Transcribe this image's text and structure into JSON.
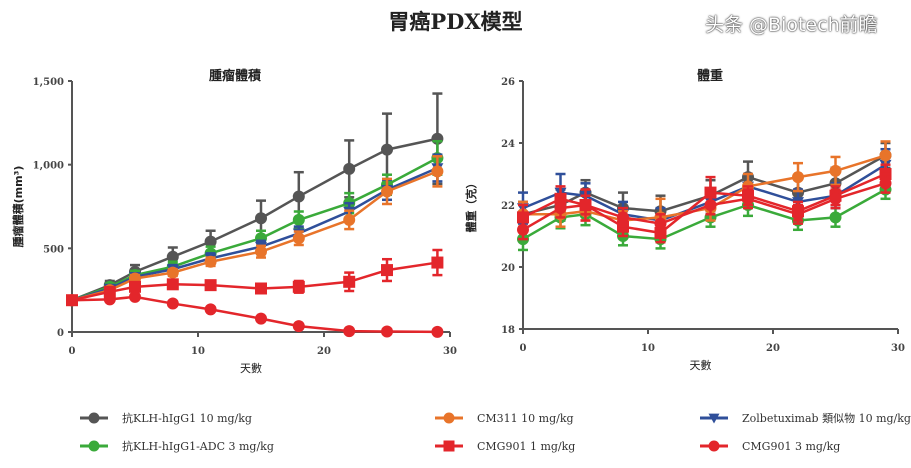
{
  "title": "胃癌PDX模型",
  "watermark": "头条 @Biotech前瞻",
  "chart_data": [
    {
      "type": "line",
      "title": "腫瘤體積",
      "xlabel": "天數",
      "ylabel": "腫瘤體積(mm³)",
      "xlim": [
        0,
        30
      ],
      "ylim": [
        0,
        1500
      ],
      "xticks": [
        0,
        10,
        20,
        30
      ],
      "yticks": [
        0,
        500,
        1000,
        1500
      ],
      "ytick_labels": [
        "0",
        "500",
        "1,000",
        "1,500"
      ],
      "x": [
        0,
        3,
        5,
        8,
        11,
        15,
        18,
        22,
        25,
        29
      ],
      "series": [
        {
          "name": "抗KLH-hIgG1 10 mg/kg",
          "color": "#555555",
          "marker": "circle",
          "values": [
            190,
            280,
            360,
            450,
            540,
            680,
            810,
            975,
            1090,
            1155
          ],
          "err": [
            15,
            25,
            40,
            55,
            65,
            105,
            145,
            170,
            215,
            270
          ]
        },
        {
          "name": "抗KLH-hIgG1-ADC 3 mg/kg",
          "color": "#3aaa3a",
          "marker": "circle",
          "values": [
            190,
            270,
            340,
            390,
            470,
            560,
            670,
            770,
            880,
            1040
          ],
          "err": [
            10,
            20,
            25,
            30,
            40,
            45,
            50,
            60,
            60,
            100
          ]
        },
        {
          "name": "Zolbetuximab 類似物 10 mg/kg",
          "color": "#2f4f9a",
          "marker": "triangle-down",
          "values": [
            190,
            260,
            330,
            375,
            440,
            510,
            590,
            720,
            850,
            980
          ],
          "err": [
            10,
            15,
            20,
            25,
            30,
            35,
            40,
            50,
            60,
            80
          ]
        },
        {
          "name": "CM311 10 mg/kg",
          "color": "#e8742a",
          "marker": "circle",
          "values": [
            190,
            250,
            320,
            355,
            420,
            480,
            560,
            670,
            840,
            960
          ],
          "err": [
            10,
            15,
            20,
            20,
            25,
            35,
            40,
            55,
            75,
            90
          ]
        },
        {
          "name": "CMG901 1 mg/kg",
          "color": "#e3262b",
          "marker": "square",
          "values": [
            190,
            240,
            270,
            285,
            280,
            260,
            270,
            300,
            370,
            415
          ],
          "err": [
            10,
            15,
            20,
            20,
            25,
            25,
            35,
            55,
            65,
            75
          ]
        },
        {
          "name": "CMG901 3 mg/kg",
          "color": "#e3262b",
          "marker": "circle",
          "values": [
            190,
            195,
            210,
            170,
            135,
            80,
            35,
            5,
            3,
            1
          ],
          "err": [
            10,
            10,
            12,
            12,
            12,
            10,
            8,
            3,
            2,
            1
          ]
        }
      ]
    },
    {
      "type": "line",
      "title": "體重",
      "xlabel": "天數",
      "ylabel": "體重（克）",
      "xlim": [
        0,
        30
      ],
      "ylim": [
        18,
        26
      ],
      "xticks": [
        0,
        10,
        20,
        30
      ],
      "yticks": [
        18,
        20,
        22,
        24,
        26
      ],
      "ytick_labels": [
        "18",
        "20",
        "22",
        "24",
        "26"
      ],
      "x": [
        0,
        3,
        5,
        8,
        11,
        15,
        18,
        22,
        25,
        29
      ],
      "series": [
        {
          "name": "抗KLH-hIgG1 10 mg/kg",
          "color": "#555555",
          "marker": "circle",
          "values": [
            21.7,
            22.0,
            22.4,
            21.9,
            21.8,
            22.3,
            22.9,
            22.4,
            22.7,
            23.6
          ],
          "err": [
            0.4,
            0.5,
            0.4,
            0.5,
            0.5,
            0.5,
            0.5,
            0.5,
            0.5,
            0.4
          ]
        },
        {
          "name": "抗KLH-hIgG1-ADC 3 mg/kg",
          "color": "#3aaa3a",
          "marker": "circle",
          "values": [
            20.9,
            21.6,
            21.7,
            21.0,
            20.9,
            21.6,
            22.0,
            21.5,
            21.6,
            22.5
          ],
          "err": [
            0.35,
            0.35,
            0.35,
            0.3,
            0.3,
            0.3,
            0.35,
            0.3,
            0.3,
            0.3
          ]
        },
        {
          "name": "Zolbetuximab 類似物 10 mg/kg",
          "color": "#2f4f9a",
          "marker": "triangle-down",
          "values": [
            21.9,
            22.4,
            22.3,
            21.7,
            21.5,
            22.1,
            22.6,
            22.1,
            22.3,
            23.3
          ],
          "err": [
            0.5,
            0.6,
            0.4,
            0.4,
            0.4,
            0.4,
            0.4,
            0.4,
            0.4,
            0.5
          ]
        },
        {
          "name": "CM311 10 mg/kg",
          "color": "#e8742a",
          "marker": "circle",
          "values": [
            21.7,
            21.7,
            21.8,
            21.5,
            21.6,
            21.9,
            22.6,
            22.9,
            23.1,
            23.6
          ],
          "err": [
            0.4,
            0.4,
            0.3,
            0.3,
            0.6,
            0.4,
            0.4,
            0.45,
            0.45,
            0.45
          ]
        },
        {
          "name": "CMG901 1 mg/kg",
          "color": "#e3262b",
          "marker": "square",
          "values": [
            21.6,
            22.2,
            22.0,
            21.3,
            21.1,
            22.4,
            22.3,
            21.8,
            22.3,
            23.0
          ],
          "err": [
            0.4,
            0.4,
            0.5,
            0.3,
            0.3,
            0.5,
            0.3,
            0.3,
            0.3,
            0.3
          ]
        },
        {
          "name": "CMG901 3 mg/kg",
          "color": "#e3262b",
          "marker": "circle",
          "values": [
            21.2,
            21.9,
            22.0,
            21.6,
            21.4,
            22.0,
            22.2,
            21.7,
            22.2,
            22.7
          ],
          "err": [
            0.3,
            0.3,
            0.3,
            0.3,
            0.3,
            0.3,
            0.3,
            0.3,
            0.3,
            0.3
          ]
        }
      ]
    }
  ],
  "legend_position": "bottom"
}
